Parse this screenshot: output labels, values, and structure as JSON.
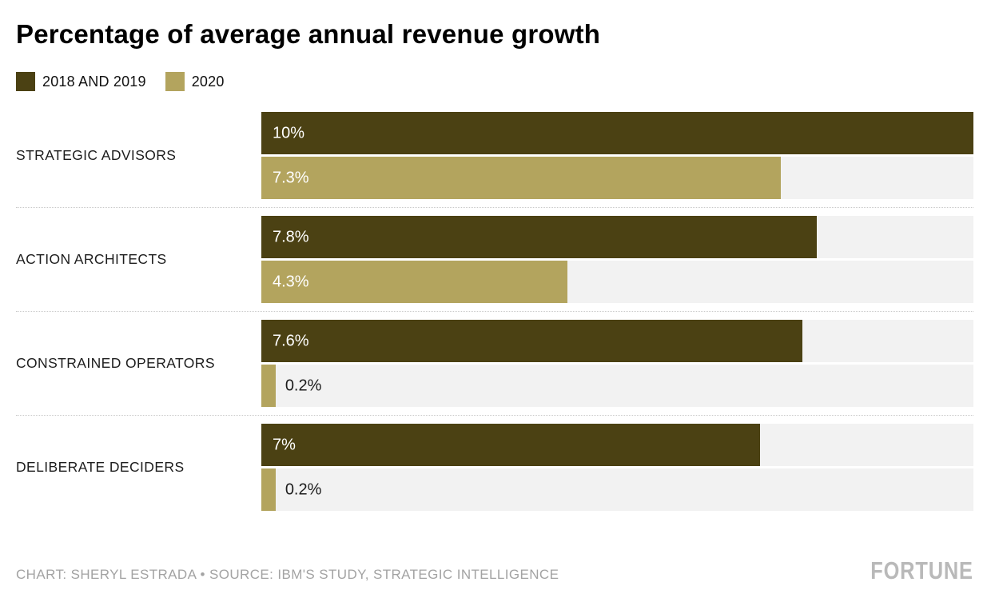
{
  "title": "Percentage of average annual revenue growth",
  "legend": [
    {
      "name": "2018-2019",
      "label": "2018 AND 2019",
      "color": "#4b4113"
    },
    {
      "name": "2020",
      "label": "2020",
      "color": "#b3a45e"
    }
  ],
  "chart_data": {
    "type": "bar",
    "orientation": "horizontal",
    "title": "Percentage of average annual revenue growth",
    "categories": [
      "STRATEGIC ADVISORS",
      "ACTION ARCHITECTS",
      "CONSTRAINED OPERATORS",
      "DELIBERATE DECIDERS"
    ],
    "series": [
      {
        "name": "2018 AND 2019",
        "color": "#4b4113",
        "values": [
          10,
          7.8,
          7.6,
          7
        ],
        "labels": [
          "10%",
          "7.8%",
          "7.6%",
          "7%"
        ]
      },
      {
        "name": "2020",
        "color": "#b3a45e",
        "values": [
          7.3,
          4.3,
          0.2,
          0.2
        ],
        "labels": [
          "7.3%",
          "4.3%",
          "0.2%",
          "0.2%"
        ]
      }
    ],
    "xlim": [
      0,
      10
    ],
    "grid": false,
    "legend_position": "top-left",
    "track_color": "#f2f2f2"
  },
  "footer": {
    "credit": "CHART: SHERYL ESTRADA • SOURCE: IBM'S STUDY, STRATEGIC INTELLIGENCE",
    "brand": "FORTUNE"
  }
}
